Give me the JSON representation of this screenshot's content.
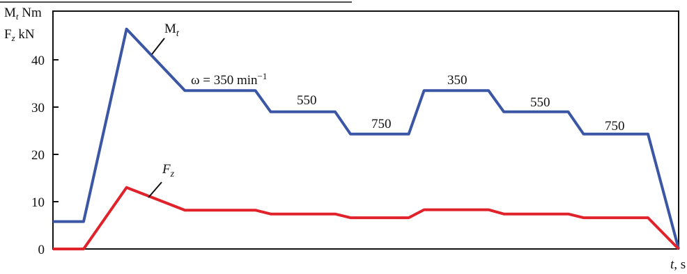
{
  "chart_data": {
    "type": "line",
    "ylabel_line1": {
      "base": "M",
      "sub": "t",
      "unit": " Nm"
    },
    "ylabel_line2": {
      "base": "F",
      "sub": "z",
      "unit": " kN"
    },
    "xlabel": {
      "italic": "t",
      "rest": ", s"
    },
    "ylim": [
      0,
      50
    ],
    "yticks": [
      0,
      10,
      20,
      30,
      40
    ],
    "grid": false,
    "series": [
      {
        "name": "Mt",
        "label_base": "M",
        "label_sub": "t",
        "color": "#3a56a5",
        "points": [
          [
            0,
            5.8
          ],
          [
            5,
            5.8
          ],
          [
            12,
            46.5
          ],
          [
            21.5,
            33.5
          ],
          [
            33,
            33.5
          ],
          [
            35.5,
            29
          ],
          [
            46,
            29
          ],
          [
            48.5,
            24.3
          ],
          [
            58,
            24.3
          ],
          [
            60.5,
            33.5
          ],
          [
            71,
            33.5
          ],
          [
            73.5,
            29
          ],
          [
            84,
            29
          ],
          [
            86.5,
            24.3
          ],
          [
            97,
            24.3
          ],
          [
            102,
            0
          ]
        ]
      },
      {
        "name": "Fz",
        "label_base": "F",
        "label_sub": "z",
        "color": "#e0232a",
        "points": [
          [
            0,
            0
          ],
          [
            5,
            0
          ],
          [
            12,
            13
          ],
          [
            21.5,
            8.2
          ],
          [
            33,
            8.2
          ],
          [
            35.5,
            7.4
          ],
          [
            46,
            7.4
          ],
          [
            48.5,
            6.6
          ],
          [
            58,
            6.6
          ],
          [
            60.5,
            8.3
          ],
          [
            71,
            8.3
          ],
          [
            73.5,
            7.4
          ],
          [
            84,
            7.4
          ],
          [
            86.5,
            6.6
          ],
          [
            97,
            6.6
          ],
          [
            102,
            0
          ]
        ]
      }
    ],
    "annotations": [
      {
        "text": "ω = 350 min",
        "sup": "−1"
      },
      {
        "text": "550"
      },
      {
        "text": "750"
      },
      {
        "text": "350"
      },
      {
        "text": "550"
      },
      {
        "text": "750"
      }
    ]
  }
}
